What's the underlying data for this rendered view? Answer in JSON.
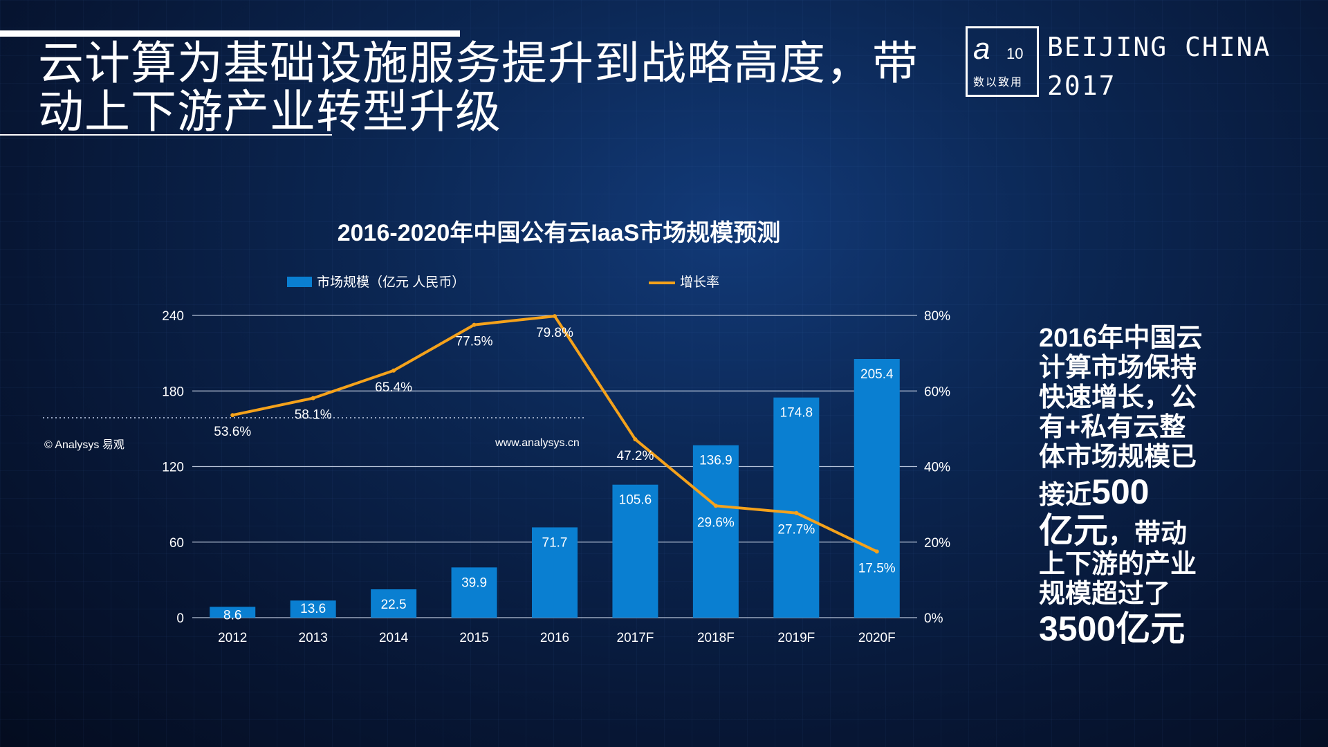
{
  "slide": {
    "title": "云计算为基础设施服务提升到战略高度，带动上下游产业转型升级",
    "logo_mark": "a",
    "logo_num": "10",
    "logo_sub": "数以致用",
    "brand_line1": "BEIJING CHINA",
    "brand_line2": "2017",
    "side_text": {
      "p1": "2016年中国云计算市场保持快速增长，公有+私有云整体市场规模已接近",
      "p1_big": "500",
      "p2_big": "亿元",
      "p2": "，带动上下游的产业规模超过了",
      "p3_big": "3500亿元"
    }
  },
  "colors": {
    "bar": "#0a7fd1",
    "line": "#f5a21b",
    "grid": "#c8d3e6",
    "text": "#ffffff"
  },
  "chart_data": {
    "type": "bar",
    "title": "2016-2020年中国公有云IaaS市场规模预测",
    "categories": [
      "2012",
      "2013",
      "2014",
      "2015",
      "2016",
      "2017F",
      "2018F",
      "2019F",
      "2020F"
    ],
    "series": [
      {
        "name": "市场规模（亿元 人民币）",
        "type": "bar",
        "axis": "left",
        "values": [
          8.6,
          13.6,
          22.5,
          39.9,
          71.7,
          105.6,
          136.9,
          174.8,
          205.4
        ],
        "labels": [
          "8.6",
          "13.6",
          "22.5",
          "39.9",
          "71.7",
          "105.6",
          "136.9",
          "174.8",
          "205.4"
        ]
      },
      {
        "name": "增长率",
        "type": "line",
        "axis": "right",
        "values": [
          53.6,
          58.1,
          65.4,
          77.5,
          79.8,
          47.2,
          29.6,
          27.7,
          17.5
        ],
        "labels": [
          "53.6%",
          "58.1%",
          "65.4%",
          "77.5%",
          "79.8%",
          "47.2%",
          "29.6%",
          "27.7%",
          "17.5%"
        ]
      }
    ],
    "ylim_left": [
      0,
      240
    ],
    "yticks_left": [
      "0",
      "60",
      "120",
      "180",
      "240"
    ],
    "ylim_right": [
      0,
      80
    ],
    "yticks_right": [
      "0%",
      "20%",
      "40%",
      "60%",
      "80%"
    ],
    "grid": true,
    "legend": "top",
    "watermark_source": "© Analysys 易观",
    "watermark_url": "www.analysys.cn"
  }
}
